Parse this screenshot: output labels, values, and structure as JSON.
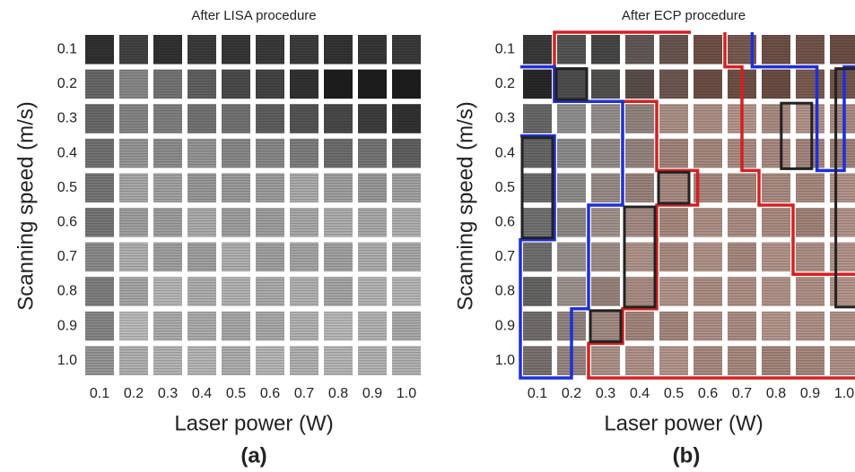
{
  "panels": [
    {
      "title": "After LISA procedure",
      "y_label": "Scanning speed (m/s)",
      "x_label": "Laser power (W)",
      "tag": "(a)",
      "y_ticks": [
        "0.1",
        "0.2",
        "0.3",
        "0.4",
        "0.5",
        "0.6",
        "0.7",
        "0.8",
        "0.9",
        "1.0"
      ],
      "x_ticks": [
        "0.1",
        "0.2",
        "0.3",
        "0.4",
        "0.5",
        "0.6",
        "0.7",
        "0.8",
        "0.9",
        "1.0"
      ]
    },
    {
      "title": "After ECP procedure",
      "y_label": "Scanning speed (m/s)",
      "x_label": "Laser power (W)",
      "tag": "(b)",
      "y_ticks": [
        "0.1",
        "0.2",
        "0.3",
        "0.4",
        "0.5",
        "0.6",
        "0.7",
        "0.8",
        "0.9",
        "1.0"
      ],
      "x_ticks": [
        "0.1",
        "0.2",
        "0.3",
        "0.4",
        "0.5",
        "0.6",
        "0.7",
        "0.8",
        "0.9",
        "1.0"
      ]
    }
  ]
}
